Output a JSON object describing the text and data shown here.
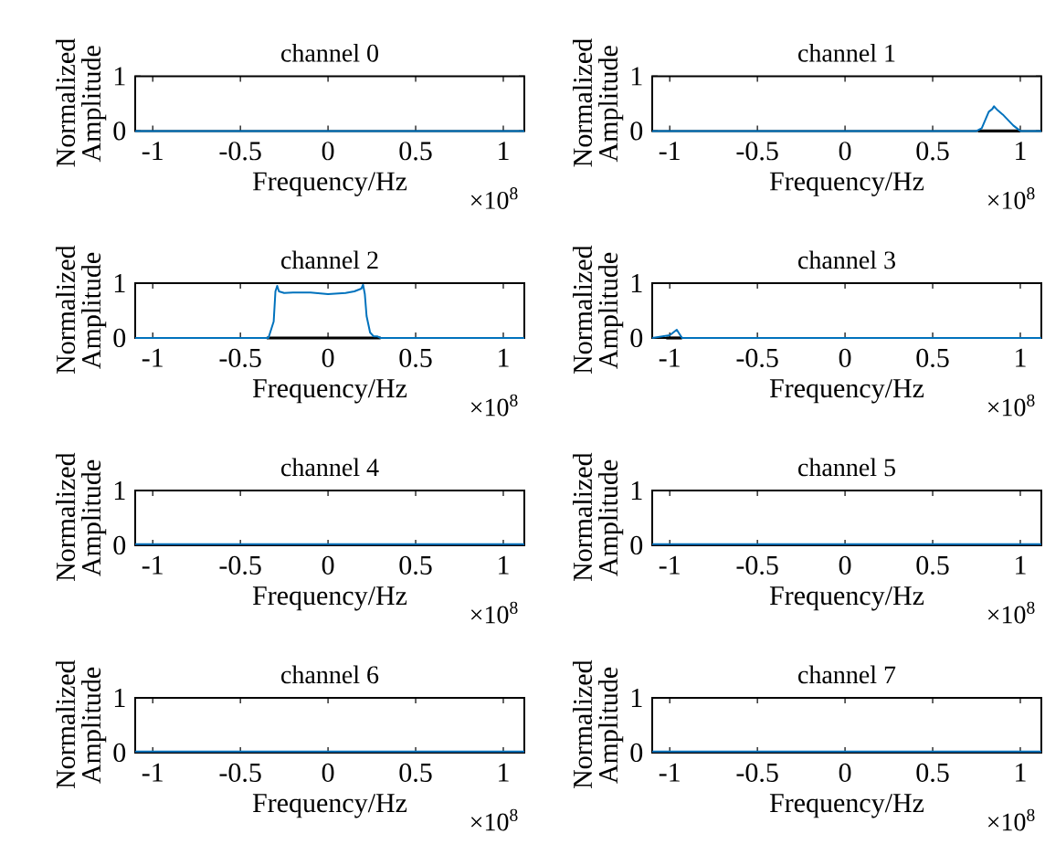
{
  "chart_data": [
    {
      "type": "line",
      "title": "channel 0",
      "xlabel": "Frequency/Hz",
      "ylabel": "Normalized Amplitude",
      "annotations": [
        "×10$^{8}$"
      ],
      "xlim": [
        -1.1,
        1.12
      ],
      "ylim": [
        0,
        1
      ],
      "xticks": [
        -1,
        -0.5,
        0,
        0.5,
        1
      ],
      "yticks": [
        0,
        1
      ],
      "series": [
        {
          "color": "#0072bd",
          "x": [
            -1.1,
            1.12
          ],
          "values": [
            0,
            0
          ]
        }
      ]
    },
    {
      "type": "line",
      "title": "channel 1",
      "xlabel": "Frequency/Hz",
      "ylabel": "Normalized Amplitude",
      "annotations": [
        "×10$^{8}$"
      ],
      "xlim": [
        -1.1,
        1.12
      ],
      "ylim": [
        0,
        1
      ],
      "xticks": [
        -1,
        -0.5,
        0,
        0.5,
        1
      ],
      "yticks": [
        0,
        1
      ],
      "series": [
        {
          "color": "#000000",
          "x": [
            0.76,
            1.0
          ],
          "values": [
            0,
            0
          ]
        },
        {
          "color": "#0072bd",
          "x": [
            -1.1,
            0.75,
            0.78,
            0.8,
            0.82,
            0.84,
            0.85,
            0.87,
            0.9,
            0.93,
            0.96,
            1.0,
            1.12
          ],
          "values": [
            0,
            0,
            0.05,
            0.2,
            0.35,
            0.4,
            0.45,
            0.38,
            0.3,
            0.2,
            0.1,
            0,
            0
          ]
        }
      ]
    },
    {
      "type": "line",
      "title": "channel 2",
      "xlabel": "Frequency/Hz",
      "ylabel": "Normalized Amplitude",
      "annotations": [
        "×10$^{8}$"
      ],
      "xlim": [
        -1.1,
        1.12
      ],
      "ylim": [
        0,
        1
      ],
      "xticks": [
        -1,
        -0.5,
        0,
        0.5,
        1
      ],
      "yticks": [
        0,
        1
      ],
      "series": [
        {
          "color": "#000000",
          "x": [
            -0.35,
            0.3
          ],
          "values": [
            0,
            0
          ]
        },
        {
          "color": "#0072bd",
          "x": [
            -1.1,
            -0.34,
            -0.33,
            -0.31,
            -0.3,
            -0.29,
            -0.28,
            -0.25,
            -0.2,
            -0.1,
            0,
            0.1,
            0.15,
            0.19,
            0.2,
            0.21,
            0.22,
            0.24,
            0.26,
            0.28,
            0.3,
            1.12
          ],
          "values": [
            0,
            0,
            0.1,
            0.3,
            0.85,
            0.95,
            0.85,
            0.82,
            0.83,
            0.83,
            0.8,
            0.82,
            0.85,
            0.9,
            0.97,
            0.8,
            0.4,
            0.1,
            0.03,
            0.03,
            0,
            0
          ]
        }
      ]
    },
    {
      "type": "line",
      "title": "channel 3",
      "xlabel": "Frequency/Hz",
      "ylabel": "Normalized Amplitude",
      "annotations": [
        "×10$^{8}$"
      ],
      "xlim": [
        -1.1,
        1.12
      ],
      "ylim": [
        0,
        1
      ],
      "xticks": [
        -1,
        -0.5,
        0,
        0.5,
        1
      ],
      "yticks": [
        0,
        1
      ],
      "series": [
        {
          "color": "#000000",
          "x": [
            -1.02,
            -0.93
          ],
          "values": [
            0,
            0
          ]
        },
        {
          "color": "#0072bd",
          "x": [
            -1.1,
            -1.0,
            -0.98,
            -0.96,
            -0.94,
            -0.93,
            1.12
          ],
          "values": [
            0,
            0.05,
            0.1,
            0.15,
            0.05,
            0,
            0
          ]
        }
      ]
    },
    {
      "type": "line",
      "title": "channel 4",
      "xlabel": "Frequency/Hz",
      "ylabel": "Normalized Amplitude",
      "annotations": [
        "×10$^{8}$"
      ],
      "xlim": [
        -1.1,
        1.12
      ],
      "ylim": [
        0,
        1
      ],
      "xticks": [
        -1,
        -0.5,
        0,
        0.5,
        1
      ],
      "yticks": [
        0,
        1
      ],
      "series": [
        {
          "color": "#0072bd",
          "x": [
            -1.1,
            1.12
          ],
          "values": [
            0.02,
            0.02
          ]
        }
      ]
    },
    {
      "type": "line",
      "title": "channel 5",
      "xlabel": "Frequency/Hz",
      "ylabel": "Normalized Amplitude",
      "annotations": [
        "×10$^{8}$"
      ],
      "xlim": [
        -1.1,
        1.12
      ],
      "ylim": [
        0,
        1
      ],
      "xticks": [
        -1,
        -0.5,
        0,
        0.5,
        1
      ],
      "yticks": [
        0,
        1
      ],
      "series": [
        {
          "color": "#0072bd",
          "x": [
            -1.1,
            1.12
          ],
          "values": [
            0.02,
            0.02
          ]
        }
      ]
    },
    {
      "type": "line",
      "title": "channel 6",
      "xlabel": "Frequency/Hz",
      "ylabel": "Normalized Amplitude",
      "annotations": [
        "×10$^{8}$"
      ],
      "xlim": [
        -1.1,
        1.12
      ],
      "ylim": [
        0,
        1
      ],
      "xticks": [
        -1,
        -0.5,
        0,
        0.5,
        1
      ],
      "yticks": [
        0,
        1
      ],
      "series": [
        {
          "color": "#0072bd",
          "x": [
            -1.1,
            1.12
          ],
          "values": [
            0.02,
            0.02
          ]
        }
      ]
    },
    {
      "type": "line",
      "title": "channel 7",
      "xlabel": "Frequency/Hz",
      "ylabel": "Normalized Amplitude",
      "annotations": [
        "×10$^{8}$"
      ],
      "xlim": [
        -1.1,
        1.12
      ],
      "ylim": [
        0,
        1
      ],
      "xticks": [
        -1,
        -0.5,
        0,
        0.5,
        1
      ],
      "yticks": [
        0,
        1
      ],
      "series": [
        {
          "color": "#0072bd",
          "x": [
            -1.1,
            1.12
          ],
          "values": [
            0.02,
            0.02
          ]
        }
      ]
    }
  ]
}
